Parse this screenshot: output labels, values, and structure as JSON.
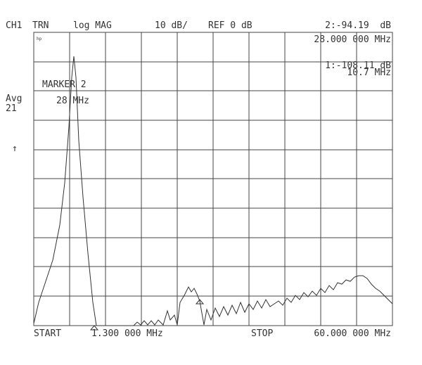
{
  "header": {
    "channel": "CH1",
    "mode": "TRN",
    "format": "log MAG",
    "scale": "10 dB/",
    "reference": "REF 0 dB",
    "active_marker": "2:-94.19  dB",
    "active_marker_freq": "28.000 000 MHz"
  },
  "marker_1": {
    "value": "1:-108.11 dB",
    "freq": "10.7 MHz"
  },
  "marker_label": {
    "title": "MARKER 2",
    "freq": "28 MHz"
  },
  "side": {
    "avg": "Avg",
    "avg_count": "21",
    "arrow": "↑"
  },
  "logo": "hp",
  "footer": {
    "start": "START",
    "start_freq": "1.300 000 MHz",
    "stop": "STOP",
    "stop_freq": "60.000 000 MHz"
  }
}
